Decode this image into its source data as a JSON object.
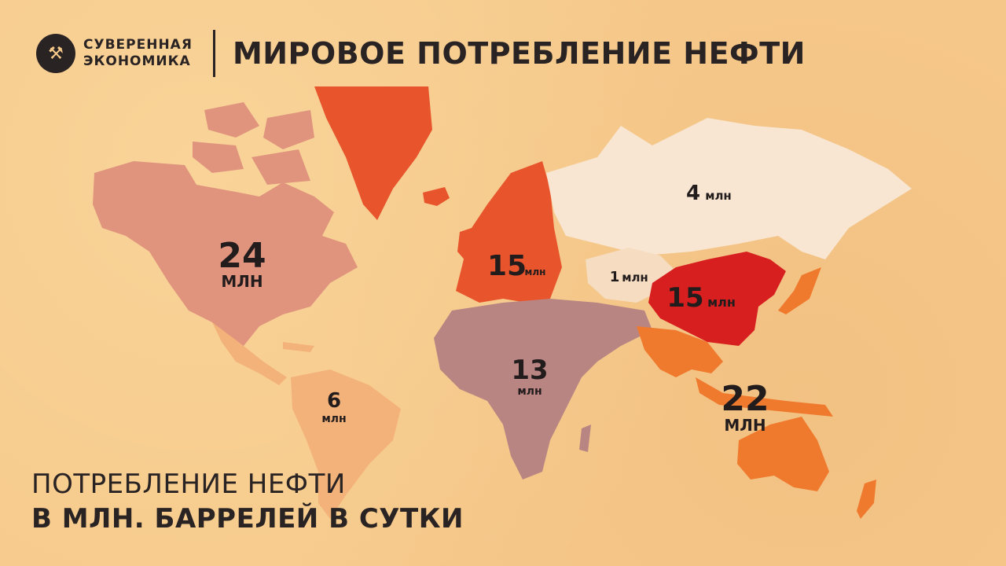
{
  "header": {
    "brand_line1": "СУВЕРЕННАЯ",
    "brand_line2": "ЭКОНОМИКА",
    "title": "МИРОВОЕ ПОТРЕБЛЕНИЕ НЕФТИ"
  },
  "legend": {
    "line1": "ПОТРЕБЛЕНИЕ НЕФТИ",
    "line2": "В МЛН. БАРРЕЛЕЙ В СУТКИ"
  },
  "regions": {
    "north_america": {
      "value": "24",
      "unit": "МЛН",
      "color": "#e0947e"
    },
    "south_america": {
      "value": "6",
      "unit": "млн",
      "color": "#f3b27a"
    },
    "europe": {
      "value": "15",
      "unit": "млн",
      "color": "#e8542c"
    },
    "russia": {
      "value": "4",
      "unit": "млн",
      "color": "#f8e6d2"
    },
    "central_asia": {
      "value": "1",
      "unit": "млн",
      "color": "#f6dcc0"
    },
    "china": {
      "value": "15",
      "unit": "млн",
      "color": "#d71f1f"
    },
    "africa_middle_east": {
      "value": "13",
      "unit": "млн",
      "color": "#b98583"
    },
    "asia_pacific": {
      "value": "22",
      "unit": "МЛН",
      "color": "#ef7a2e"
    }
  }
}
